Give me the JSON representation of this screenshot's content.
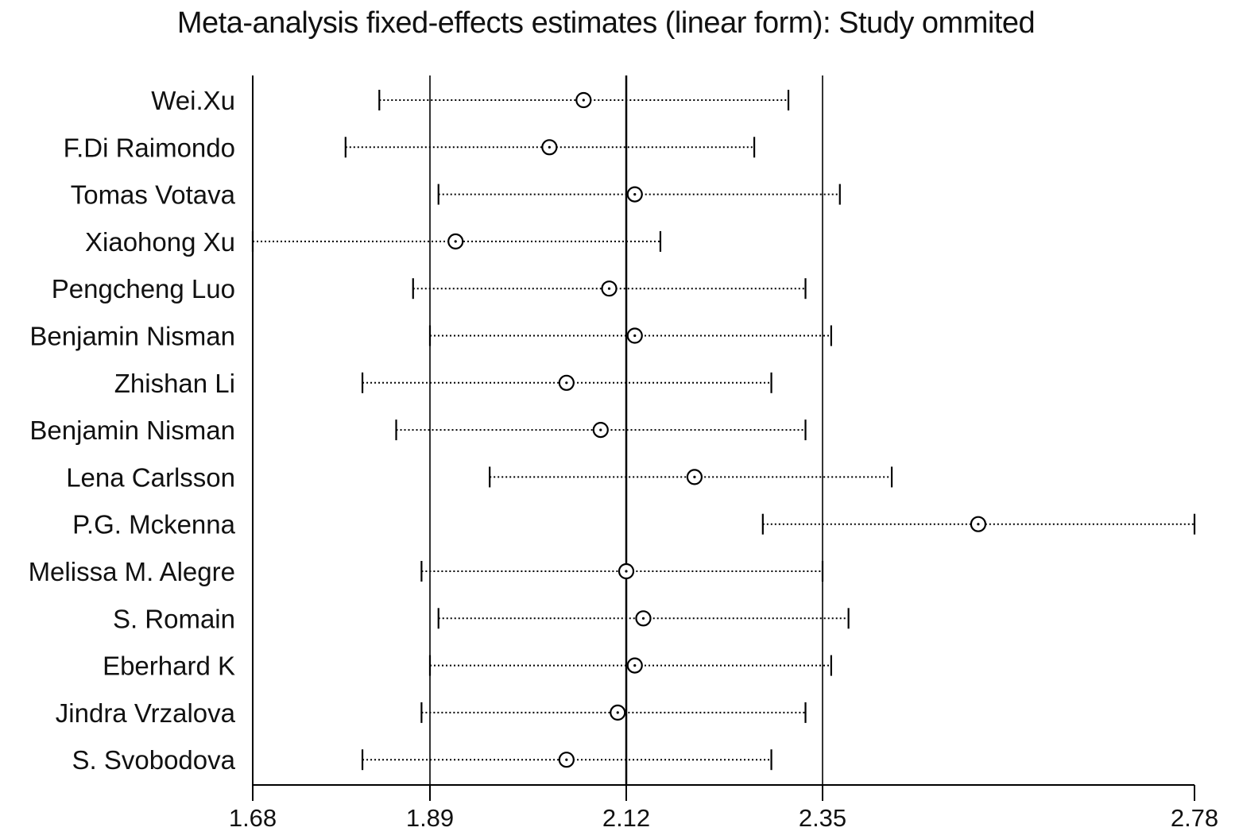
{
  "chart_data": {
    "type": "forest",
    "title": "Meta-analysis fixed-effects estimates (linear form): Study ommited",
    "xlabel": "",
    "ylabel": "",
    "x_ticks": [
      1.68,
      1.89,
      2.12,
      2.35,
      2.78
    ],
    "x_tick_labels": [
      "1.68",
      "1.89",
      "2.12",
      "2.35",
      "2.78"
    ],
    "xlim": [
      1.68,
      2.78
    ],
    "reference_lines": [
      1.89,
      2.12,
      2.35
    ],
    "estimate_line": 2.12,
    "studies": [
      {
        "label": "Wei.Xu",
        "lower": 1.83,
        "estimate": 2.07,
        "upper": 2.31
      },
      {
        "label": "F.Di Raimondo",
        "lower": 1.79,
        "estimate": 2.03,
        "upper": 2.27
      },
      {
        "label": "Tomas Votava",
        "lower": 1.9,
        "estimate": 2.13,
        "upper": 2.37
      },
      {
        "label": "Xiaohong Xu",
        "lower": 1.68,
        "estimate": 1.92,
        "upper": 2.16
      },
      {
        "label": "Pengcheng Luo",
        "lower": 1.87,
        "estimate": 2.1,
        "upper": 2.33
      },
      {
        "label": "Benjamin Nisman",
        "lower": 1.89,
        "estimate": 2.13,
        "upper": 2.36
      },
      {
        "label": "Zhishan Li",
        "lower": 1.81,
        "estimate": 2.05,
        "upper": 2.29
      },
      {
        "label": "Benjamin Nisman",
        "lower": 1.85,
        "estimate": 2.09,
        "upper": 2.33
      },
      {
        "label": "Lena Carlsson",
        "lower": 1.96,
        "estimate": 2.2,
        "upper": 2.43
      },
      {
        "label": "P.G. Mckenna",
        "lower": 2.28,
        "estimate": 2.53,
        "upper": 2.78
      },
      {
        "label": "Melissa M.  Alegre",
        "lower": 1.88,
        "estimate": 2.12,
        "upper": 2.35
      },
      {
        "label": "S. Romain",
        "lower": 1.9,
        "estimate": 2.14,
        "upper": 2.38
      },
      {
        "label": "Eberhard K",
        "lower": 1.89,
        "estimate": 2.13,
        "upper": 2.36
      },
      {
        "label": "Jindra Vrzalova",
        "lower": 1.88,
        "estimate": 2.11,
        "upper": 2.33
      },
      {
        "label": "S. Svobodova",
        "lower": 1.81,
        "estimate": 2.05,
        "upper": 2.29
      }
    ]
  }
}
